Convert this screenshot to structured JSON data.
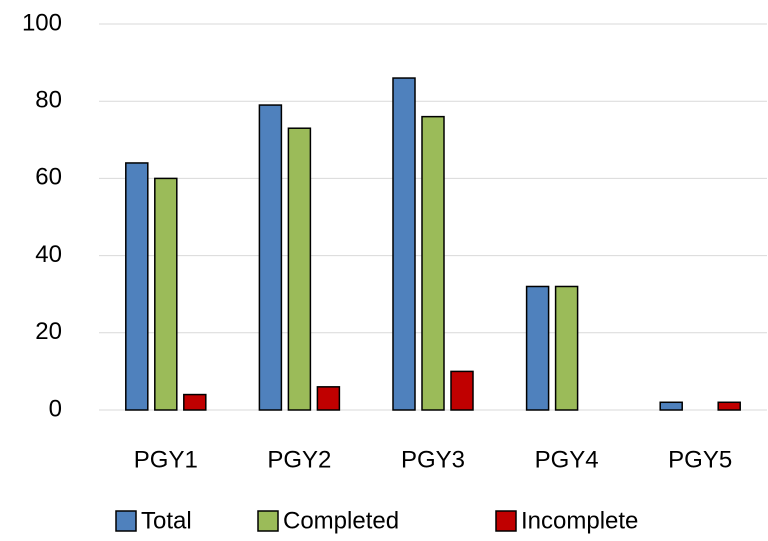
{
  "chart_data": {
    "type": "bar",
    "categories": [
      "PGY1",
      "PGY2",
      "PGY3",
      "PGY4",
      "PGY5"
    ],
    "series": [
      {
        "name": "Total",
        "color": "#4f81bd",
        "values": [
          64,
          79,
          86,
          32,
          2
        ]
      },
      {
        "name": "Completed",
        "color": "#9bbb59",
        "values": [
          60,
          73,
          76,
          32,
          0
        ]
      },
      {
        "name": "Incomplete",
        "color": "#c00000",
        "values": [
          4,
          6,
          10,
          0,
          2
        ]
      }
    ],
    "ylim": [
      0,
      100
    ],
    "yticks": [
      0,
      20,
      40,
      60,
      80,
      100
    ],
    "grid": true,
    "legend": "bottom"
  }
}
